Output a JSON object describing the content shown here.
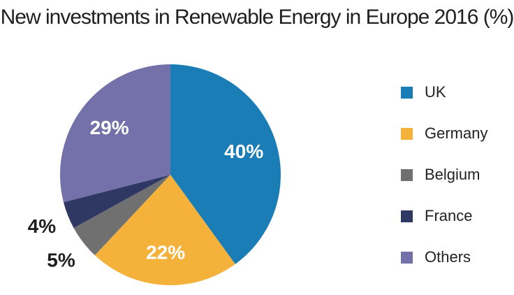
{
  "chart_data": {
    "type": "pie",
    "title": "New investments in Renewable Energy in Europe 2016 (%)",
    "slices": [
      {
        "name": "UK",
        "value": 40,
        "label": "40%",
        "color": "#1a7db5"
      },
      {
        "name": "Germany",
        "value": 22,
        "label": "22%",
        "color": "#f5b23a"
      },
      {
        "name": "Belgium",
        "value": 5,
        "label": "5%",
        "color": "#707070"
      },
      {
        "name": "France",
        "value": 4,
        "label": "4%",
        "color": "#2f3863"
      },
      {
        "name": "Others",
        "value": 29,
        "label": "29%",
        "color": "#7470aa"
      }
    ],
    "legend_position": "right"
  }
}
